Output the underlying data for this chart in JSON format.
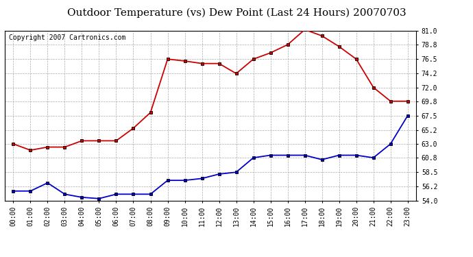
{
  "title": "Outdoor Temperature (vs) Dew Point (Last 24 Hours) 20070703",
  "copyright": "Copyright 2007 Cartronics.com",
  "hours": [
    "00:00",
    "01:00",
    "02:00",
    "03:00",
    "04:00",
    "05:00",
    "06:00",
    "07:00",
    "08:00",
    "09:00",
    "10:00",
    "11:00",
    "12:00",
    "13:00",
    "14:00",
    "15:00",
    "16:00",
    "17:00",
    "18:00",
    "19:00",
    "20:00",
    "21:00",
    "22:00",
    "23:00"
  ],
  "temp": [
    63.0,
    62.0,
    62.5,
    62.5,
    63.5,
    63.5,
    63.5,
    65.5,
    68.0,
    76.5,
    76.2,
    75.8,
    75.8,
    74.2,
    76.5,
    77.5,
    78.8,
    81.2,
    80.2,
    78.5,
    76.5,
    72.0,
    69.8,
    69.8
  ],
  "dew": [
    55.5,
    55.5,
    56.8,
    55.0,
    54.5,
    54.3,
    55.0,
    55.0,
    55.0,
    57.2,
    57.2,
    57.5,
    58.2,
    58.5,
    60.8,
    61.2,
    61.2,
    61.2,
    60.5,
    61.2,
    61.2,
    60.8,
    63.0,
    67.5
  ],
  "temp_color": "#cc0000",
  "dew_color": "#0000cc",
  "bg_color": "#ffffff",
  "grid_color": "#aaaaaa",
  "ylim": [
    54.0,
    81.0
  ],
  "yticks": [
    54.0,
    56.2,
    58.5,
    60.8,
    63.0,
    65.2,
    67.5,
    69.8,
    72.0,
    74.2,
    76.5,
    78.8,
    81.0
  ],
  "title_fontsize": 11,
  "tick_fontsize": 7,
  "copyright_fontsize": 7
}
